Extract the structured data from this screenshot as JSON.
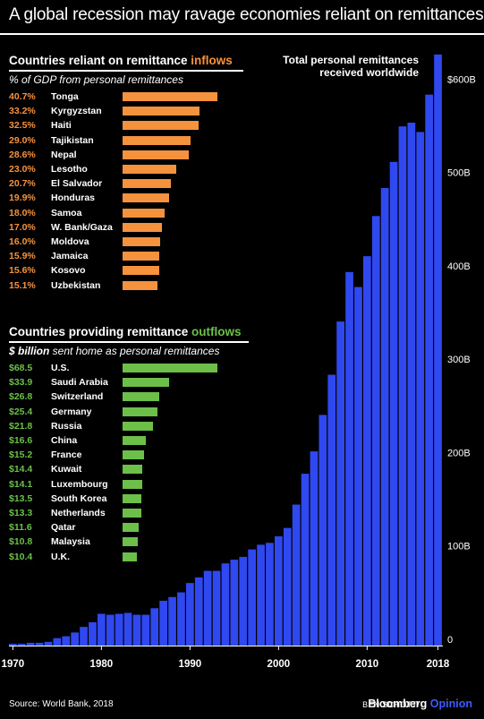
{
  "title": "A global recession may ravage economies reliant on remittances",
  "inflows": {
    "heading_prefix": "Countries reliant on remittance ",
    "heading_highlight": "inflows",
    "subtitle": "% of GDP from personal remittances",
    "color": "#f5923e",
    "items": [
      {
        "value": "40.7%",
        "name": "Tonga",
        "pct": 40.7
      },
      {
        "value": "33.2%",
        "name": "Kyrgyzstan",
        "pct": 33.2
      },
      {
        "value": "32.5%",
        "name": "Haiti",
        "pct": 32.5
      },
      {
        "value": "29.0%",
        "name": "Tajikistan",
        "pct": 29.0
      },
      {
        "value": "28.6%",
        "name": "Nepal",
        "pct": 28.6
      },
      {
        "value": "23.0%",
        "name": "Lesotho",
        "pct": 23.0
      },
      {
        "value": "20.7%",
        "name": "El Salvador",
        "pct": 20.7
      },
      {
        "value": "19.9%",
        "name": "Honduras",
        "pct": 19.9
      },
      {
        "value": "18.0%",
        "name": "Samoa",
        "pct": 18.0
      },
      {
        "value": "17.0%",
        "name": "W. Bank/Gaza",
        "pct": 17.0
      },
      {
        "value": "16.0%",
        "name": "Moldova",
        "pct": 16.0
      },
      {
        "value": "15.9%",
        "name": "Jamaica",
        "pct": 15.9
      },
      {
        "value": "15.6%",
        "name": "Kosovo",
        "pct": 15.6
      },
      {
        "value": "15.1%",
        "name": "Uzbekistan",
        "pct": 15.1
      }
    ]
  },
  "outflows": {
    "heading_prefix": "Countries providing remittance ",
    "heading_highlight": "outflows",
    "subtitle_bold": "$ billion",
    "subtitle_rest": " sent home as personal remittances",
    "color": "#6cc04a",
    "items": [
      {
        "value": "$68.5",
        "name": "U.S.",
        "amount": 68.5
      },
      {
        "value": "$33.9",
        "name": "Saudi Arabia",
        "amount": 33.9
      },
      {
        "value": "$26.8",
        "name": "Switzerland",
        "amount": 26.8
      },
      {
        "value": "$25.4",
        "name": "Germany",
        "amount": 25.4
      },
      {
        "value": "$21.8",
        "name": "Russia",
        "amount": 21.8
      },
      {
        "value": "$16.6",
        "name": "China",
        "amount": 16.6
      },
      {
        "value": "$15.2",
        "name": "France",
        "amount": 15.2
      },
      {
        "value": "$14.4",
        "name": "Kuwait",
        "amount": 14.4
      },
      {
        "value": "$14.1",
        "name": "Luxembourg",
        "amount": 14.1
      },
      {
        "value": "$13.5",
        "name": "South Korea",
        "amount": 13.5
      },
      {
        "value": "$13.3",
        "name": "Netherlands",
        "amount": 13.3
      },
      {
        "value": "$11.6",
        "name": "Qatar",
        "amount": 11.6
      },
      {
        "value": "$10.8",
        "name": "Malaysia",
        "amount": 10.8
      },
      {
        "value": "$10.4",
        "name": "U.K.",
        "amount": 10.4
      }
    ]
  },
  "chart_data": {
    "type": "bar",
    "title": "Total personal remittances received worldwide",
    "x_ticks": [
      "1970",
      "1980",
      "1990",
      "2000",
      "2010",
      "2018"
    ],
    "y_ticks": [
      "0",
      "100B",
      "200B",
      "300B",
      "400B",
      "500B",
      "$600B"
    ],
    "y_tick_values": [
      0,
      100,
      200,
      300,
      400,
      500,
      600
    ],
    "ylim": [
      0,
      630
    ],
    "unit": "$ billion",
    "color": "#3048f0",
    "categories": [
      1970,
      1971,
      1972,
      1973,
      1974,
      1975,
      1976,
      1977,
      1978,
      1979,
      1980,
      1981,
      1982,
      1983,
      1984,
      1985,
      1986,
      1987,
      1988,
      1989,
      1990,
      1991,
      1992,
      1993,
      1994,
      1995,
      1996,
      1997,
      1998,
      1999,
      2000,
      2001,
      2002,
      2003,
      2004,
      2005,
      2006,
      2007,
      2008,
      2009,
      2010,
      2011,
      2012,
      2013,
      2014,
      2015,
      2016,
      2017,
      2018
    ],
    "values": [
      2,
      2,
      3,
      3,
      4,
      8,
      10,
      14,
      20,
      25,
      34,
      33,
      34,
      35,
      33,
      33,
      40,
      48,
      52,
      57,
      67,
      73,
      80,
      80,
      88,
      92,
      95,
      103,
      108,
      110,
      117,
      126,
      151,
      184,
      208,
      247,
      290,
      347,
      400,
      384,
      417,
      460,
      490,
      518,
      556,
      560,
      550,
      590,
      633
    ]
  },
  "footer": {
    "source": "Source: World Bank, 2018",
    "byline": "BEN SCHOTT",
    "slash": "/",
    "brand": "Bloomberg",
    "brand_suffix": "Opinion"
  }
}
